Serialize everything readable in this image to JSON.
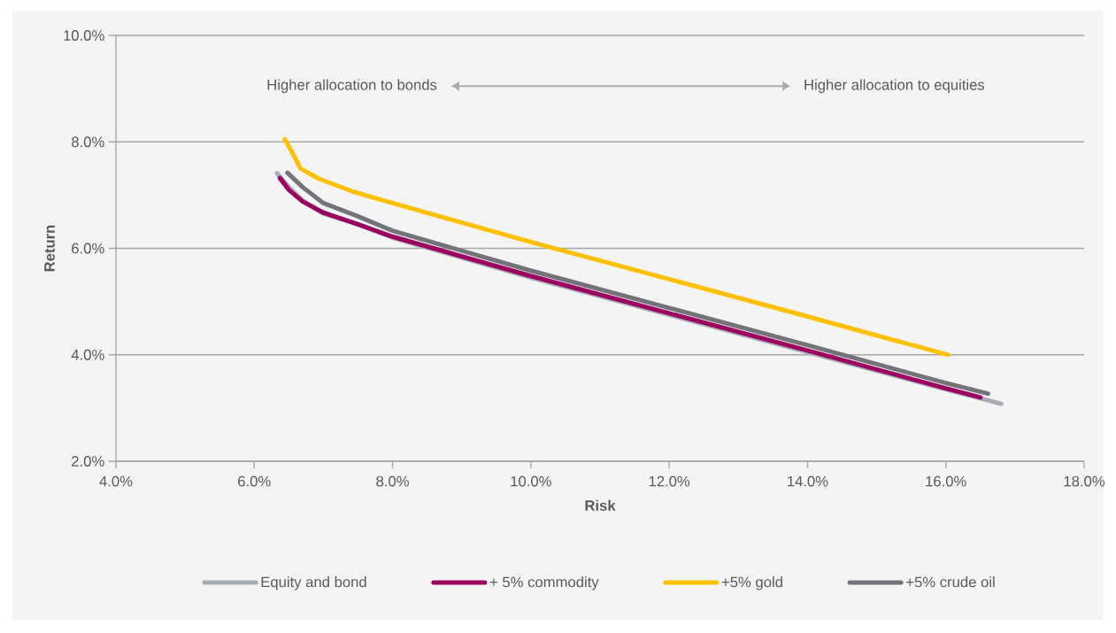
{
  "chart_data": {
    "type": "line",
    "xlabel": "Risk",
    "ylabel": "Return",
    "xlim": [
      4,
      18
    ],
    "ylim": [
      2,
      10
    ],
    "xticks": [
      {
        "value": 4,
        "label": "4.0%"
      },
      {
        "value": 6,
        "label": "6.0%"
      },
      {
        "value": 8,
        "label": "8.0%"
      },
      {
        "value": 10,
        "label": "10.0%"
      },
      {
        "value": 12,
        "label": "12.0%"
      },
      {
        "value": 14,
        "label": "14.0%"
      },
      {
        "value": 16,
        "label": "16.0%"
      },
      {
        "value": 18,
        "label": "18.0%"
      }
    ],
    "yticks": [
      {
        "value": 2,
        "label": "2.0%"
      },
      {
        "value": 4,
        "label": "4.0%"
      },
      {
        "value": 6,
        "label": "6.0%"
      },
      {
        "value": 8,
        "label": "8.0%"
      },
      {
        "value": 10,
        "label": "10.0%"
      }
    ],
    "grid": "y",
    "legend": "bottom",
    "annotations": [
      "Higher allocation to bonds",
      "Higher allocation to equities"
    ],
    "series": [
      {
        "name": "Equity and bond",
        "color": "#a6acb2",
        "x": [
          6.33,
          6.5,
          6.7,
          7.0,
          7.5,
          8,
          10,
          12,
          14,
          16,
          16.8
        ],
        "values": [
          7.41,
          7.15,
          6.9,
          6.65,
          6.45,
          6.2,
          5.45,
          4.75,
          4.05,
          3.35,
          3.08
        ]
      },
      {
        "name": "+ 5% commodity",
        "color": "#9b0060",
        "x": [
          6.37,
          6.5,
          6.7,
          7.0,
          7.5,
          8,
          10,
          12,
          14,
          16,
          16.5
        ],
        "values": [
          7.32,
          7.1,
          6.88,
          6.67,
          6.45,
          6.22,
          5.48,
          4.78,
          4.08,
          3.37,
          3.2
        ]
      },
      {
        "name": "+5% gold",
        "color": "#ffc000",
        "x": [
          6.44,
          6.55,
          6.67,
          6.93,
          7.44,
          8,
          10,
          12,
          14,
          16,
          16.03
        ],
        "values": [
          8.05,
          7.8,
          7.5,
          7.31,
          7.06,
          6.85,
          6.12,
          5.42,
          4.72,
          4.01,
          4.0
        ]
      },
      {
        "name": "+5% crude oil",
        "color": "#75737a",
        "x": [
          6.48,
          6.7,
          7.0,
          7.5,
          8,
          10,
          12,
          14,
          16,
          16.61
        ],
        "values": [
          7.42,
          7.15,
          6.85,
          6.6,
          6.33,
          5.58,
          4.88,
          4.18,
          3.47,
          3.27
        ]
      }
    ]
  }
}
